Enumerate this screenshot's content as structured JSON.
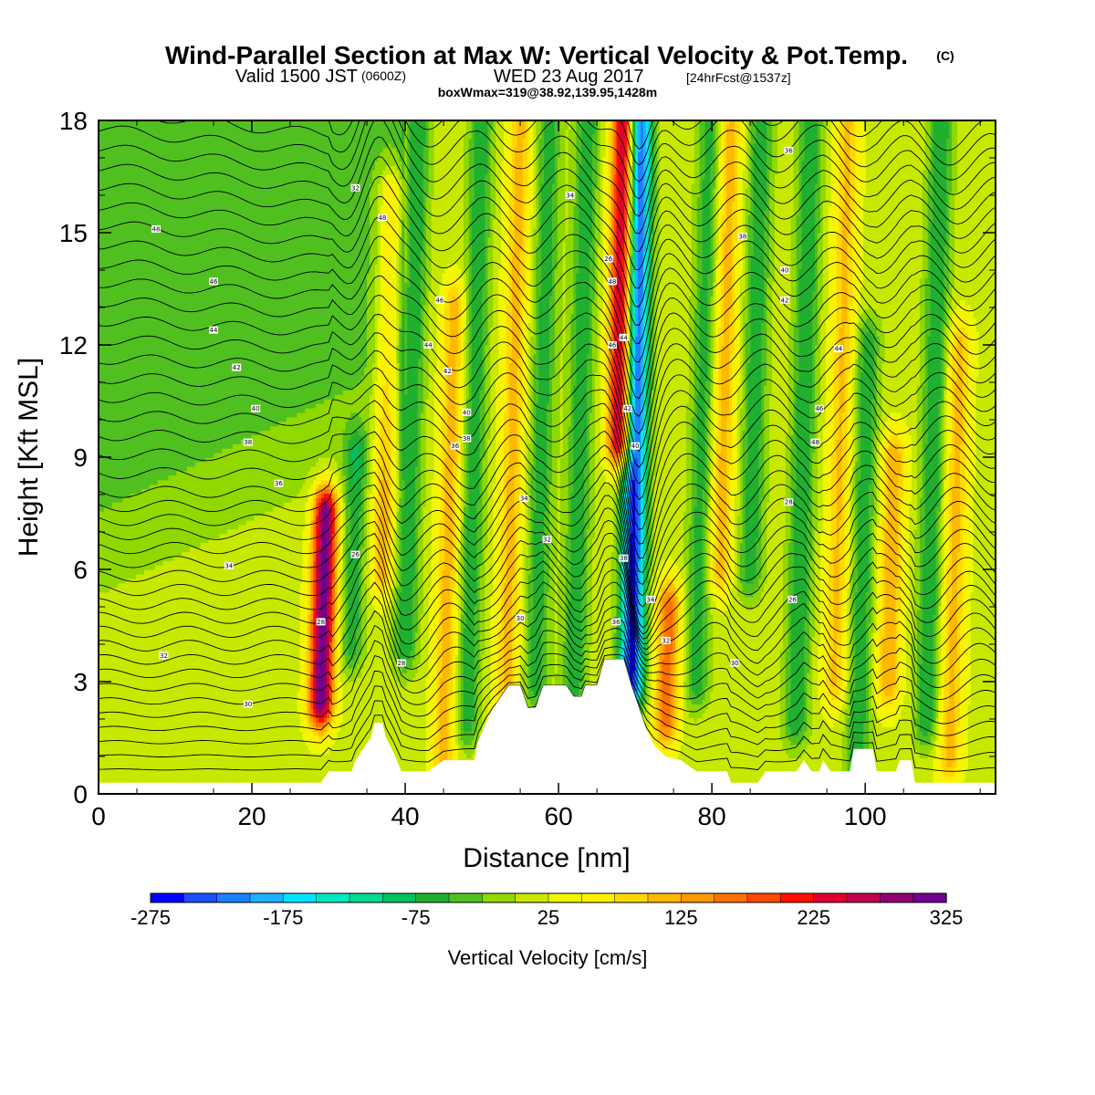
{
  "title": {
    "main": "Wind-Parallel Section at Max W: Vertical Velocity & Pot.Temp.",
    "main_mark": "(C)",
    "line2_a": "Valid 1500 JST",
    "line2_b": "(0600Z)",
    "line2_c": "WED 23 Aug 2017",
    "line2_d": "[24hrFcst@1537z]",
    "line3": "boxWmax=319@38.92,139.95,1428m"
  },
  "chart_data": {
    "type": "heatmap",
    "xlabel": "Distance [nm]",
    "ylabel": "Height [Kft MSL]",
    "xlim": [
      0,
      117
    ],
    "ylim": [
      0,
      18
    ],
    "x_ticks": [
      "0",
      "20",
      "40",
      "60",
      "80",
      "100"
    ],
    "y_ticks": [
      "0",
      "3",
      "6",
      "9",
      "12",
      "15",
      "18"
    ],
    "colorbar": {
      "title": "Vertical Velocity [cm/s]",
      "tick_labels": [
        "-275",
        "-175",
        "-75",
        "25",
        "125",
        "225",
        "325"
      ],
      "range": [
        -275,
        325
      ],
      "step": 25,
      "colors": [
        "#0000ff",
        "#1a4fff",
        "#1e7fff",
        "#1fb0ff",
        "#00e5ff",
        "#00e8c0",
        "#00d990",
        "#00c060",
        "#20b030",
        "#50c020",
        "#90d800",
        "#c8e800",
        "#f0f800",
        "#fff000",
        "#ffd800",
        "#ffb800",
        "#ff9800",
        "#ff7000",
        "#ff4800",
        "#ff1000",
        "#e00030",
        "#c00050",
        "#900070",
        "#700090"
      ]
    },
    "shaded_field": {
      "name": "Vertical Velocity",
      "background_value": 15,
      "features": [
        {
          "x": 29,
          "y0": 2.5,
          "y1": 7.5,
          "value": 300
        },
        {
          "x": 68,
          "y0": 9.5,
          "y1": 18,
          "value": 275
        },
        {
          "x": 69.5,
          "y0": 3,
          "y1": 18,
          "value": -275
        },
        {
          "x": 74,
          "y0": 2,
          "y1": 5,
          "value": 150
        },
        {
          "x": 37,
          "y0": 6,
          "y1": 16,
          "value": 100
        },
        {
          "x": 33,
          "y0": 4,
          "y1": 9,
          "value": -80
        },
        {
          "x": 40,
          "y0": 4,
          "y1": 18,
          "value": -90
        },
        {
          "x": 45,
          "y0": 1,
          "y1": 13,
          "value": 100
        },
        {
          "x": 48,
          "y0": 2,
          "y1": 18,
          "value": -85
        },
        {
          "x": 53,
          "y0": 1,
          "y1": 18,
          "value": 95
        },
        {
          "x": 57,
          "y0": 3,
          "y1": 18,
          "value": -80
        },
        {
          "x": 62,
          "y0": 3,
          "y1": 18,
          "value": -85
        },
        {
          "x": 78,
          "y0": 3,
          "y1": 18,
          "value": -80
        },
        {
          "x": 81,
          "y0": 6,
          "y1": 18,
          "value": 100
        },
        {
          "x": 85,
          "y0": 6,
          "y1": 18,
          "value": -85
        },
        {
          "x": 91,
          "y0": 2,
          "y1": 18,
          "value": -90
        },
        {
          "x": 96,
          "y0": 3,
          "y1": 18,
          "value": 90
        },
        {
          "x": 99,
          "y0": 1,
          "y1": 12,
          "value": -85
        },
        {
          "x": 103,
          "y0": 3,
          "y1": 9,
          "value": 110
        },
        {
          "x": 108,
          "y0": 2,
          "y1": 18,
          "value": -90
        },
        {
          "x": 111,
          "y0": 1,
          "y1": 12,
          "value": 95
        }
      ]
    },
    "contours": {
      "name": "Potential Temperature",
      "label_values": [
        48,
        46,
        44,
        42,
        40,
        38,
        36,
        34,
        32,
        30,
        28,
        26
      ]
    },
    "terrain": [
      [
        0,
        0.3
      ],
      [
        28,
        0.3
      ],
      [
        29,
        0.3
      ],
      [
        30,
        0.6
      ],
      [
        33,
        0.6
      ],
      [
        33.5,
        0.9
      ],
      [
        34.5,
        1.2
      ],
      [
        35.5,
        1.5
      ],
      [
        36,
        1.9
      ],
      [
        37,
        1.9
      ],
      [
        37.5,
        1.5
      ],
      [
        38.5,
        1.1
      ],
      [
        39.5,
        0.6
      ],
      [
        43,
        0.6
      ],
      [
        45,
        0.9
      ],
      [
        49,
        0.9
      ],
      [
        49.5,
        1.4
      ],
      [
        50.5,
        1.9
      ],
      [
        51.5,
        2.3
      ],
      [
        52.5,
        2.6
      ],
      [
        53.5,
        2.9
      ],
      [
        55,
        2.9
      ],
      [
        55.5,
        2.6
      ],
      [
        56,
        2.3
      ],
      [
        57,
        2.3
      ],
      [
        57.5,
        2.6
      ],
      [
        58,
        2.9
      ],
      [
        61,
        2.9
      ],
      [
        62,
        2.6
      ],
      [
        63,
        2.6
      ],
      [
        63.5,
        2.9
      ],
      [
        65,
        2.9
      ],
      [
        66,
        3.6
      ],
      [
        68.5,
        3.6
      ],
      [
        69.5,
        2.9
      ],
      [
        70.5,
        2.3
      ],
      [
        71.5,
        1.7
      ],
      [
        72.5,
        1.3
      ],
      [
        74,
        1.0
      ],
      [
        76,
        0.9
      ],
      [
        78,
        0.6
      ],
      [
        82,
        0.6
      ],
      [
        82.5,
        0.3
      ],
      [
        86,
        0.3
      ],
      [
        87,
        0.6
      ],
      [
        91,
        0.6
      ],
      [
        92,
        0.9
      ],
      [
        93,
        0.6
      ],
      [
        94,
        0.6
      ],
      [
        94.5,
        0.9
      ],
      [
        95.5,
        0.6
      ],
      [
        98,
        0.6
      ],
      [
        98.5,
        1.2
      ],
      [
        101,
        1.2
      ],
      [
        101.5,
        0.6
      ],
      [
        104,
        0.6
      ],
      [
        104.5,
        0.9
      ],
      [
        106,
        0.9
      ],
      [
        106.5,
        0.3
      ],
      [
        117,
        0.3
      ]
    ]
  }
}
